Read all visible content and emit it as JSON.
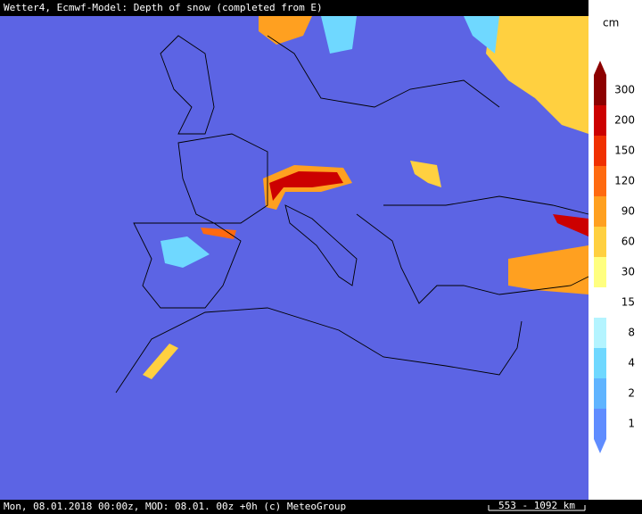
{
  "header": {
    "title": "Wetter4, Ecmwf-Model: Depth of snow (completed from E)"
  },
  "footer": {
    "text": "Mon, 08.01.2018 00:00z, MOD: 08.01. 00z +0h (c) MeteoGroup",
    "scale": "553 - 1092 km"
  },
  "legend": {
    "unit": "cm",
    "levels": [
      {
        "value": 1,
        "color": "#5f8cff"
      },
      {
        "value": 2,
        "color": "#5fb4ff"
      },
      {
        "value": 4,
        "color": "#6fd8ff"
      },
      {
        "value": 8,
        "color": "#b4f4ff"
      },
      {
        "value": 15,
        "color": "#ffffff"
      },
      {
        "value": 30,
        "color": "#ffff80"
      },
      {
        "value": 60,
        "color": "#ffd040"
      },
      {
        "value": 90,
        "color": "#ffa020"
      },
      {
        "value": 120,
        "color": "#ff6a10"
      },
      {
        "value": 150,
        "color": "#f03000"
      },
      {
        "value": 200,
        "color": "#cc0000"
      },
      {
        "value": 300,
        "color": "#8c0000"
      }
    ]
  }
}
